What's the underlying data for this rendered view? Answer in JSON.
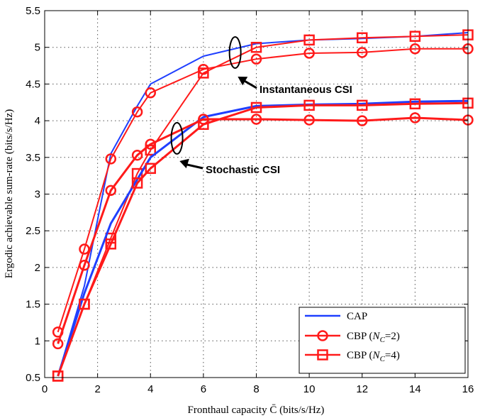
{
  "chart_data": {
    "type": "line",
    "xlabel": "Fronthaul capacity C̄ (bits/s/Hz)",
    "ylabel": "Ergodic achievable sum-rate (bits/s/Hz)",
    "xlim": [
      0,
      16
    ],
    "ylim": [
      0.5,
      5.5
    ],
    "xticks": [
      0,
      2,
      4,
      6,
      8,
      10,
      12,
      14,
      16
    ],
    "yticks": [
      0.5,
      1,
      1.5,
      2,
      2.5,
      3,
      3.5,
      4,
      4.5,
      5,
      5.5
    ],
    "grid": true,
    "legend_position": "bottom-right",
    "legend": [
      {
        "label": "CAP",
        "color": "#1f3fff",
        "marker": "none"
      },
      {
        "label": "CBP (N_C=2)",
        "color": "#ff1a1a",
        "marker": "circle"
      },
      {
        "label": "CBP (N_C=4)",
        "color": "#ff1a1a",
        "marker": "square"
      }
    ],
    "legend_text": {
      "cap": "CAP",
      "cbp2_prefix": "CBP (",
      "cbp2_var": "N",
      "cbp2_sub": "C",
      "cbp2_suffix": "=2)",
      "cbp4_prefix": "CBP (",
      "cbp4_var": "N",
      "cbp4_sub": "C",
      "cbp4_suffix": "=4)"
    },
    "series": [
      {
        "name": "CAP - Instantaneous CSI",
        "color": "#1f3fff",
        "marker": "none",
        "width": 2,
        "x": [
          0.5,
          1.5,
          2.5,
          3.5,
          4,
          6,
          8,
          10,
          12,
          14,
          16
        ],
        "y": [
          0.52,
          1.75,
          3.55,
          4.2,
          4.5,
          4.88,
          5.05,
          5.1,
          5.12,
          5.15,
          5.2
        ]
      },
      {
        "name": "CBP (N_C=2) - Instantaneous CSI",
        "color": "#ff1a1a",
        "marker": "circle",
        "width": 2,
        "x": [
          0.5,
          1.5,
          2.5,
          3.5,
          4,
          6,
          8,
          10,
          12,
          14,
          16
        ],
        "y": [
          1.12,
          2.25,
          3.48,
          4.12,
          4.38,
          4.7,
          4.84,
          4.92,
          4.93,
          4.98,
          4.98
        ]
      },
      {
        "name": "CBP (N_C=4) - Instantaneous CSI",
        "color": "#ff1a1a",
        "marker": "square",
        "width": 2,
        "x": [
          0.5,
          1.5,
          2.5,
          3.5,
          4,
          6,
          8,
          10,
          12,
          14,
          16
        ],
        "y": [
          0.52,
          1.5,
          2.4,
          3.28,
          3.6,
          4.65,
          5.0,
          5.1,
          5.13,
          5.15,
          5.17
        ]
      },
      {
        "name": "CAP - Stochastic CSI",
        "color": "#1f3fff",
        "marker": "none",
        "width": 3,
        "x": [
          0.5,
          1.5,
          2.5,
          3.5,
          4,
          6,
          8,
          10,
          12,
          14,
          16
        ],
        "y": [
          0.52,
          1.65,
          2.6,
          3.2,
          3.5,
          4.05,
          4.2,
          4.22,
          4.23,
          4.26,
          4.27
        ]
      },
      {
        "name": "CBP (N_C=2) - Stochastic CSI",
        "color": "#ff1a1a",
        "marker": "circle",
        "width": 3,
        "x": [
          0.5,
          1.5,
          2.5,
          3.5,
          4,
          6,
          8,
          10,
          12,
          14,
          16
        ],
        "y": [
          0.96,
          2.03,
          3.05,
          3.53,
          3.68,
          4.02,
          4.02,
          4.01,
          4.0,
          4.04,
          4.01
        ]
      },
      {
        "name": "CBP (N_C=4) - Stochastic CSI",
        "color": "#ff1a1a",
        "marker": "square",
        "width": 3,
        "x": [
          0.5,
          1.5,
          2.5,
          3.5,
          4,
          6,
          8,
          10,
          12,
          14,
          16
        ],
        "y": [
          0.52,
          1.5,
          2.32,
          3.15,
          3.35,
          3.95,
          4.18,
          4.21,
          4.21,
          4.23,
          4.24
        ]
      }
    ],
    "annotations": [
      {
        "text": "Instantaneous CSI",
        "ellipse_center": [
          7.2,
          4.93
        ],
        "arrow_tip": [
          7.3,
          4.6
        ],
        "group": "instantaneous"
      },
      {
        "text": "Stochastic CSI",
        "ellipse_center": [
          5.0,
          3.76
        ],
        "arrow_tip": [
          5.1,
          3.45
        ],
        "group": "stochastic"
      }
    ]
  }
}
